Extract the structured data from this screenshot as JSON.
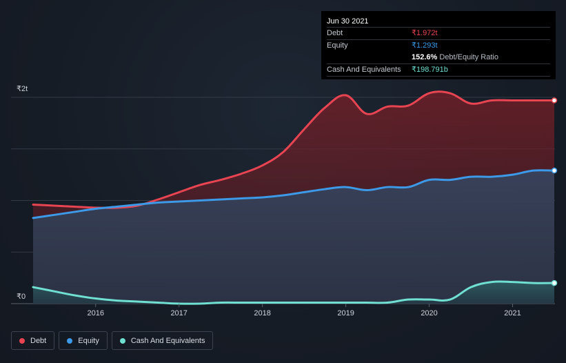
{
  "tooltip": {
    "date": "Jun 30 2021",
    "rows": [
      {
        "label": "Debt",
        "value": "₹1.972t"
      },
      {
        "label": "Equity",
        "value": "₹1.293t"
      },
      {
        "label": "",
        "value": "152.6%",
        "extra": "Debt/Equity Ratio"
      },
      {
        "label": "Cash And Equivalents",
        "value": "₹198.791b"
      }
    ]
  },
  "legend": {
    "items": [
      {
        "label": "Debt",
        "color": "#e84452"
      },
      {
        "label": "Equity",
        "color": "#3c9ae8"
      },
      {
        "label": "Cash And Equivalents",
        "color": "#6fe0d1"
      }
    ]
  },
  "chart_data": {
    "type": "area",
    "y_tick_labels": [
      "₹0",
      "₹2t"
    ],
    "x_tick_labels": [
      "2016",
      "2017",
      "2018",
      "2019",
      "2020",
      "2021"
    ],
    "ylim": [
      0,
      2.0
    ],
    "xlim": [
      2015.25,
      2021.5
    ],
    "unit": "₹ trillion",
    "grid": true,
    "series": [
      {
        "name": "Debt",
        "color": "#e84452",
        "x": [
          2015.25,
          2015.5,
          2015.75,
          2016.0,
          2016.25,
          2016.5,
          2016.75,
          2017.0,
          2017.25,
          2017.5,
          2017.75,
          2018.0,
          2018.25,
          2018.5,
          2018.75,
          2019.0,
          2019.25,
          2019.5,
          2019.75,
          2020.0,
          2020.25,
          2020.5,
          2020.75,
          2021.0,
          2021.25,
          2021.5
        ],
        "values": [
          0.96,
          0.95,
          0.94,
          0.93,
          0.93,
          0.95,
          1.01,
          1.08,
          1.15,
          1.2,
          1.26,
          1.34,
          1.47,
          1.69,
          1.9,
          2.02,
          1.84,
          1.91,
          1.92,
          2.04,
          2.04,
          1.94,
          1.97,
          1.97,
          1.97,
          1.97
        ]
      },
      {
        "name": "Equity",
        "color": "#3c9ae8",
        "x": [
          2015.25,
          2015.5,
          2015.75,
          2016.0,
          2016.25,
          2016.5,
          2016.75,
          2017.0,
          2017.25,
          2017.5,
          2017.75,
          2018.0,
          2018.25,
          2018.5,
          2018.75,
          2019.0,
          2019.25,
          2019.5,
          2019.75,
          2020.0,
          2020.25,
          2020.5,
          2020.75,
          2021.0,
          2021.25,
          2021.5
        ],
        "values": [
          0.83,
          0.86,
          0.89,
          0.92,
          0.94,
          0.96,
          0.98,
          0.99,
          1.0,
          1.01,
          1.02,
          1.03,
          1.05,
          1.08,
          1.11,
          1.13,
          1.1,
          1.13,
          1.13,
          1.2,
          1.2,
          1.23,
          1.23,
          1.25,
          1.29,
          1.29
        ]
      },
      {
        "name": "Cash And Equivalents",
        "color": "#6fe0d1",
        "x": [
          2015.25,
          2015.5,
          2015.75,
          2016.0,
          2016.25,
          2016.5,
          2016.75,
          2017.0,
          2017.25,
          2017.5,
          2017.75,
          2018.0,
          2018.25,
          2018.5,
          2018.75,
          2019.0,
          2019.25,
          2019.5,
          2019.75,
          2020.0,
          2020.25,
          2020.5,
          2020.75,
          2021.0,
          2021.25,
          2021.5
        ],
        "values": [
          0.16,
          0.12,
          0.08,
          0.05,
          0.03,
          0.02,
          0.01,
          0.0,
          0.0,
          0.01,
          0.01,
          0.01,
          0.01,
          0.01,
          0.01,
          0.01,
          0.01,
          0.01,
          0.04,
          0.04,
          0.04,
          0.16,
          0.21,
          0.21,
          0.2,
          0.2
        ]
      }
    ]
  }
}
